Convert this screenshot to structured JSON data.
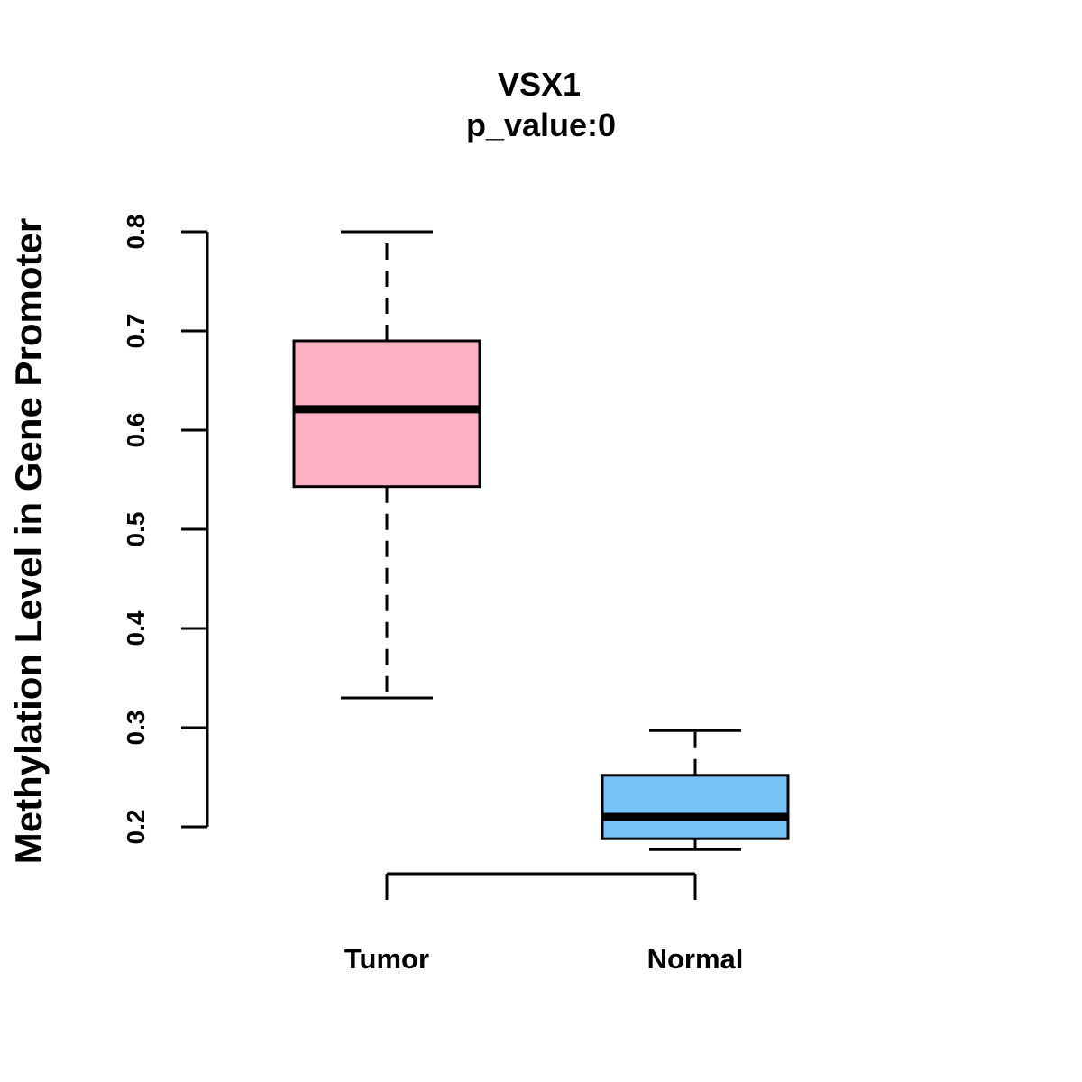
{
  "chart_data": {
    "type": "box",
    "title": "VSX1",
    "subtitle": "p_value:0",
    "xlabel": "",
    "ylabel": "Methylation Level in Gene Promoter",
    "ylim": [
      0.2,
      0.8
    ],
    "yticks": [
      0.2,
      0.3,
      0.4,
      0.5,
      0.6,
      0.7,
      0.8
    ],
    "ytick_labels": [
      "0.2",
      "0.3",
      "0.4",
      "0.5",
      "0.6",
      "0.7",
      "0.8"
    ],
    "grid": false,
    "categories": [
      "Tumor",
      "Normal"
    ],
    "boxes": [
      {
        "name": "Tumor",
        "whisker_low": 0.33,
        "q1": 0.543,
        "median": 0.621,
        "q3": 0.69,
        "whisker_high": 0.8,
        "color": "#FBB1C3"
      },
      {
        "name": "Normal",
        "whisker_low": 0.177,
        "q1": 0.188,
        "median": 0.21,
        "q3": 0.252,
        "whisker_high": 0.297,
        "color": "#77C2F8"
      }
    ]
  }
}
